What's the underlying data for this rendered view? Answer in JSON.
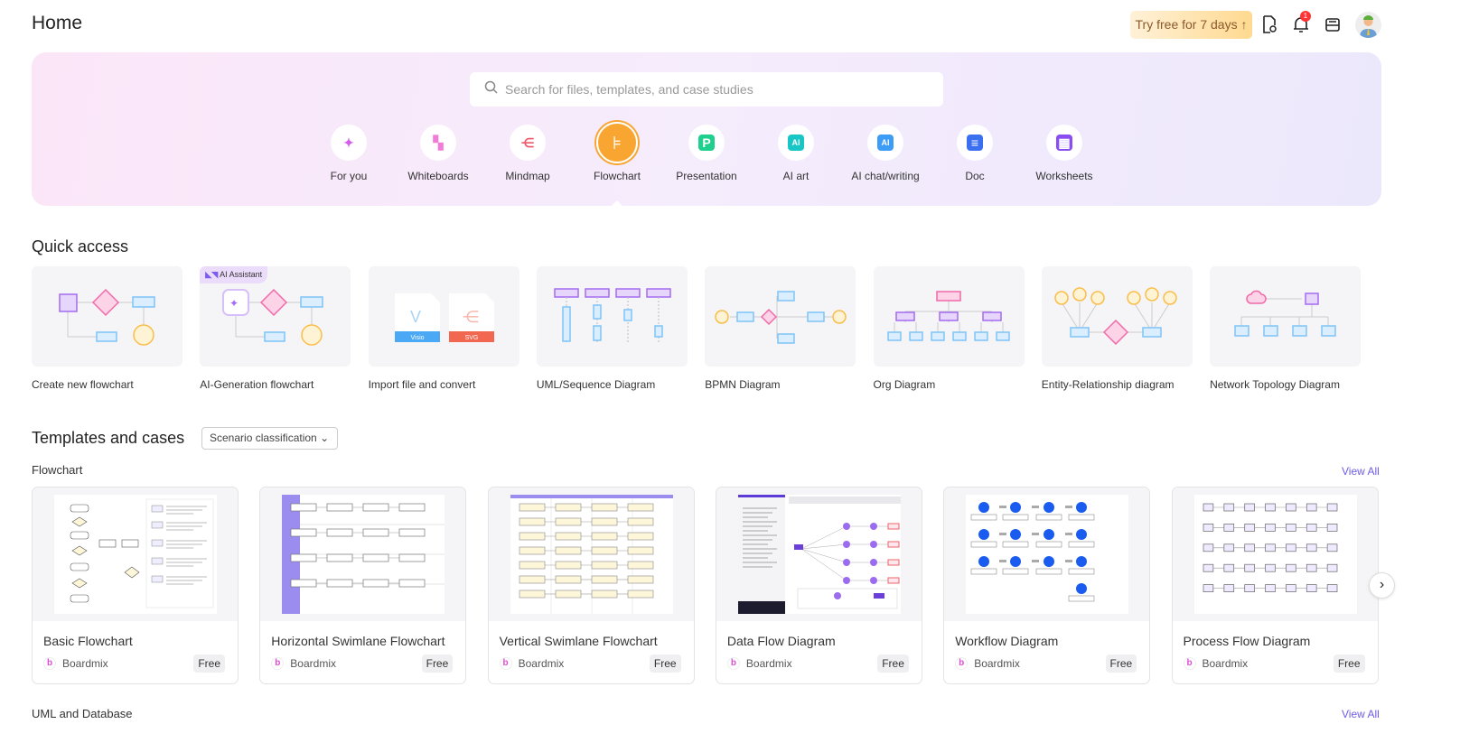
{
  "header": {
    "title": "Home",
    "trial_label": "Try free for 7 days",
    "notification_count": "1",
    "icons": [
      "file-link-icon",
      "bell-icon",
      "inbox-icon",
      "avatar"
    ]
  },
  "search": {
    "placeholder": "Search for files, templates, and case studies"
  },
  "categories": [
    {
      "label": "For you",
      "icon": "sparkle-icon",
      "color": "#d65cf0"
    },
    {
      "label": "Whiteboards",
      "icon": "whiteboard-icon",
      "color": "#f27ad8"
    },
    {
      "label": "Mindmap",
      "icon": "mindmap-icon",
      "color": "#f0566a"
    },
    {
      "label": "Flowchart",
      "icon": "flowchart-icon",
      "color": "#f8a531",
      "active": true
    },
    {
      "label": "Presentation",
      "icon": "presentation-icon",
      "color": "#1fcf8e"
    },
    {
      "label": "AI art",
      "icon": "ai-art-icon",
      "color": "#18c6c6"
    },
    {
      "label": "AI chat/writing",
      "icon": "ai-chat-icon",
      "color": "#3d9cf5"
    },
    {
      "label": "Doc",
      "icon": "doc-icon",
      "color": "#3a6ff0"
    },
    {
      "label": "Worksheets",
      "icon": "worksheet-icon",
      "color": "#8a4df0"
    }
  ],
  "quick_access": {
    "title": "Quick access",
    "items": [
      {
        "label": "Create new flowchart"
      },
      {
        "label": "AI-Generation flowchart",
        "tag": "AI Assistant"
      },
      {
        "label": "Import file and convert",
        "files": [
          "Visio",
          "SVG"
        ]
      },
      {
        "label": "UML/Sequence Diagram"
      },
      {
        "label": "BPMN Diagram"
      },
      {
        "label": "Org Diagram"
      },
      {
        "label": "Entity-Relationship diagram"
      },
      {
        "label": "Network Topology Diagram"
      }
    ]
  },
  "templates": {
    "title": "Templates and cases",
    "filter_label": "Scenario classification",
    "sections": [
      {
        "title": "Flowchart",
        "view_all": "View All",
        "cards": [
          {
            "name": "Basic Flowchart",
            "author": "Boardmix",
            "price": "Free"
          },
          {
            "name": "Horizontal Swimlane Flowchart",
            "author": "Boardmix",
            "price": "Free"
          },
          {
            "name": "Vertical Swimlane Flowchart",
            "author": "Boardmix",
            "price": "Free"
          },
          {
            "name": "Data Flow Diagram",
            "author": "Boardmix",
            "price": "Free"
          },
          {
            "name": "Workflow Diagram",
            "author": "Boardmix",
            "price": "Free"
          },
          {
            "name": "Process Flow Diagram",
            "author": "Boardmix",
            "price": "Free"
          }
        ]
      },
      {
        "title": "UML and Database",
        "view_all": "View All"
      }
    ]
  }
}
